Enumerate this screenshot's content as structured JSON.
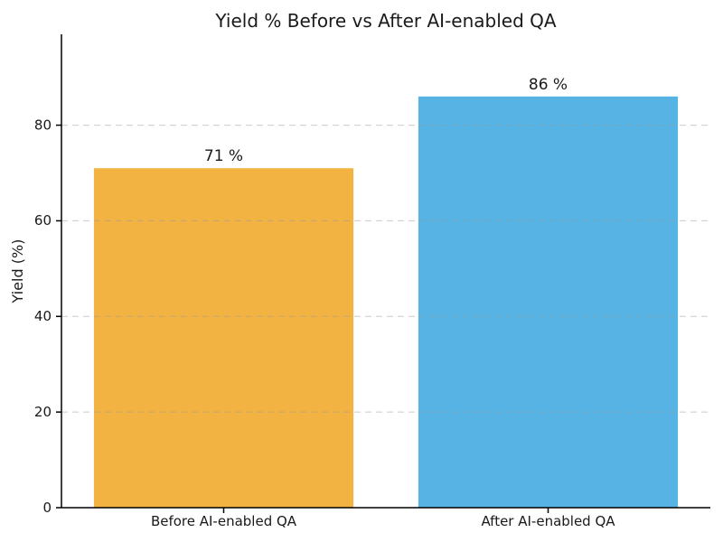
{
  "chart_data": {
    "type": "bar",
    "title": "Yield % Before vs After AI-enabled QA",
    "categories": [
      "Before AI-enabled QA",
      "After AI-enabled QA"
    ],
    "values": [
      71,
      86
    ],
    "bar_labels": [
      "71 %",
      "86 %"
    ],
    "bar_colors": [
      "#F2B342",
      "#56B3E4"
    ],
    "ylabel": "Yield (%)",
    "xlabel": "",
    "ylim": [
      0,
      99
    ],
    "yticks": [
      0,
      20,
      40,
      60,
      80
    ],
    "grid": "horizontal dashed, drawn above bars",
    "legend": "none",
    "background": "#ffffff",
    "text_color": "#1a1a1a",
    "grid_color": "#999999",
    "axis_color": "#000000"
  }
}
